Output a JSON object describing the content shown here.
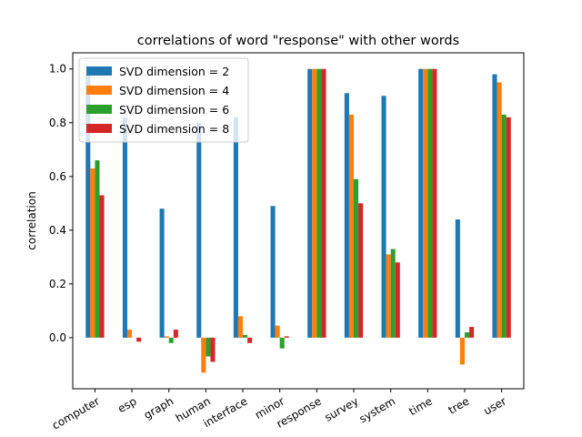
{
  "chart_data": {
    "type": "bar",
    "title": "correlations of word \"response\" with other words",
    "xlabel": "",
    "ylabel": "correlation",
    "ylim": [
      -0.19,
      1.06
    ],
    "yticks": [
      "0.0",
      "0.2",
      "0.4",
      "0.6",
      "0.8",
      "1.0"
    ],
    "ytick_values": [
      0.0,
      0.2,
      0.4,
      0.6,
      0.8,
      1.0
    ],
    "grid": false,
    "legend": "top-left",
    "categories": [
      "computer",
      "esp",
      "graph",
      "human",
      "interface",
      "minor",
      "response",
      "survey",
      "system",
      "time",
      "tree",
      "user"
    ],
    "series": [
      {
        "name": "SVD dimension = 2",
        "color": "#1f77b4",
        "values": [
          0.98,
          0.82,
          0.48,
          0.8,
          0.82,
          0.49,
          1.0,
          0.91,
          0.9,
          1.0,
          0.44,
          0.98
        ]
      },
      {
        "name": "SVD dimension = 4",
        "color": "#ff7f0e",
        "values": [
          0.63,
          0.03,
          0.005,
          -0.13,
          0.08,
          0.045,
          1.0,
          0.83,
          0.31,
          1.0,
          -0.1,
          0.95
        ]
      },
      {
        "name": "SVD dimension = 6",
        "color": "#2ca02c",
        "values": [
          0.66,
          0.0,
          -0.02,
          -0.07,
          0.01,
          -0.04,
          1.0,
          0.59,
          0.33,
          1.0,
          0.02,
          0.83
        ]
      },
      {
        "name": "SVD dimension = 8",
        "color": "#d62728",
        "values": [
          0.53,
          -0.015,
          0.03,
          -0.09,
          -0.02,
          0.005,
          1.0,
          0.5,
          0.28,
          1.0,
          0.04,
          0.82
        ]
      }
    ]
  }
}
